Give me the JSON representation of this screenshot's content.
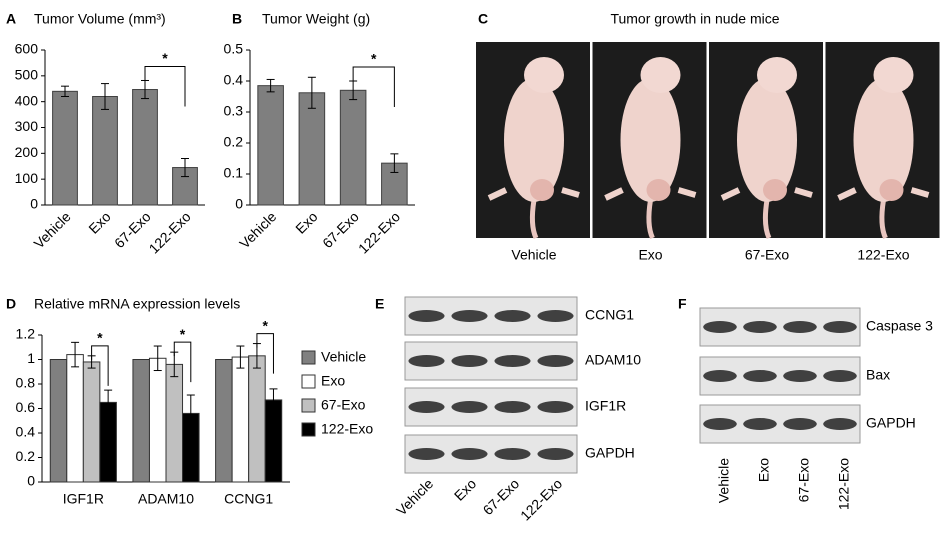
{
  "chart_data": [
    {
      "label": "A",
      "type": "bar",
      "title": "Tumor Volume (mm³)",
      "categories": [
        "Vehicle",
        "Exo",
        "67-Exo",
        "122-Exo"
      ],
      "values": [
        440,
        420,
        447,
        145
      ],
      "errors": [
        20,
        50,
        35,
        35
      ],
      "color": "#7f7f7f",
      "ylim": [
        0,
        600
      ],
      "yticks": [
        0,
        100,
        200,
        300,
        400,
        500,
        600
      ],
      "annotations": [
        {
          "text": "*",
          "from": "67-Exo",
          "to": "122-Exo"
        }
      ]
    },
    {
      "label": "B",
      "type": "bar",
      "title": "Tumor Weight (g)",
      "categories": [
        "Vehicle",
        "Exo",
        "67-Exo",
        "122-Exo"
      ],
      "values": [
        0.385,
        0.362,
        0.37,
        0.135
      ],
      "errors": [
        0.02,
        0.05,
        0.03,
        0.03
      ],
      "color": "#7f7f7f",
      "ylim": [
        0,
        0.5
      ],
      "yticks": [
        0,
        0.1,
        0.2,
        0.3,
        0.4,
        0.5
      ],
      "annotations": [
        {
          "text": "*",
          "from": "67-Exo",
          "to": "122-Exo"
        }
      ]
    },
    {
      "label": "D",
      "type": "grouped_bar",
      "title": "Relative mRNA expression levels",
      "categories": [
        "IGF1R",
        "ADAM10",
        "CCNG1"
      ],
      "series": [
        {
          "name": "Vehicle",
          "color": "#808080",
          "values": [
            1,
            1,
            1
          ]
        },
        {
          "name": "Exo",
          "color": "#ffffff",
          "values": [
            1.04,
            1.01,
            1.02
          ],
          "errors": [
            0.1,
            0.1,
            0.09
          ]
        },
        {
          "name": "67-Exo",
          "color": "#c0c0c0",
          "values": [
            0.98,
            0.96,
            1.03
          ],
          "errors": [
            0.05,
            0.1,
            0.1
          ]
        },
        {
          "name": "122-Exo",
          "color": "#000000",
          "values": [
            0.65,
            0.56,
            0.67
          ],
          "errors": [
            0.1,
            0.15,
            0.09
          ]
        }
      ],
      "ylim": [
        0,
        1.2
      ],
      "yticks": [
        0,
        0.2,
        0.4,
        0.6,
        0.8,
        1,
        1.2
      ],
      "legend": "right",
      "annotations": [
        {
          "text": "*",
          "category": "IGF1R",
          "from": "67-Exo",
          "to": "122-Exo"
        },
        {
          "text": "*",
          "category": "ADAM10",
          "from": "67-Exo",
          "to": "122-Exo"
        },
        {
          "text": "*",
          "category": "CCNG1",
          "from": "67-Exo",
          "to": "122-Exo"
        }
      ]
    }
  ],
  "photo_panel": {
    "label": "C",
    "title": "Tumor growth in nude mice",
    "lanes": [
      "Vehicle",
      "Exo",
      "67-Exo",
      "122-Exo"
    ]
  },
  "blot_panels": [
    {
      "label": "E",
      "bands": [
        "CCNG1",
        "ADAM10",
        "IGF1R",
        "GAPDH"
      ],
      "lanes": [
        "Vehicle",
        "Exo",
        "67-Exo",
        "122-Exo"
      ]
    },
    {
      "label": "F",
      "bands": [
        "Caspase 3",
        "Bax",
        "GAPDH"
      ],
      "lanes": [
        "Vehicle",
        "Exo",
        "67-Exo",
        "122-Exo"
      ]
    }
  ]
}
